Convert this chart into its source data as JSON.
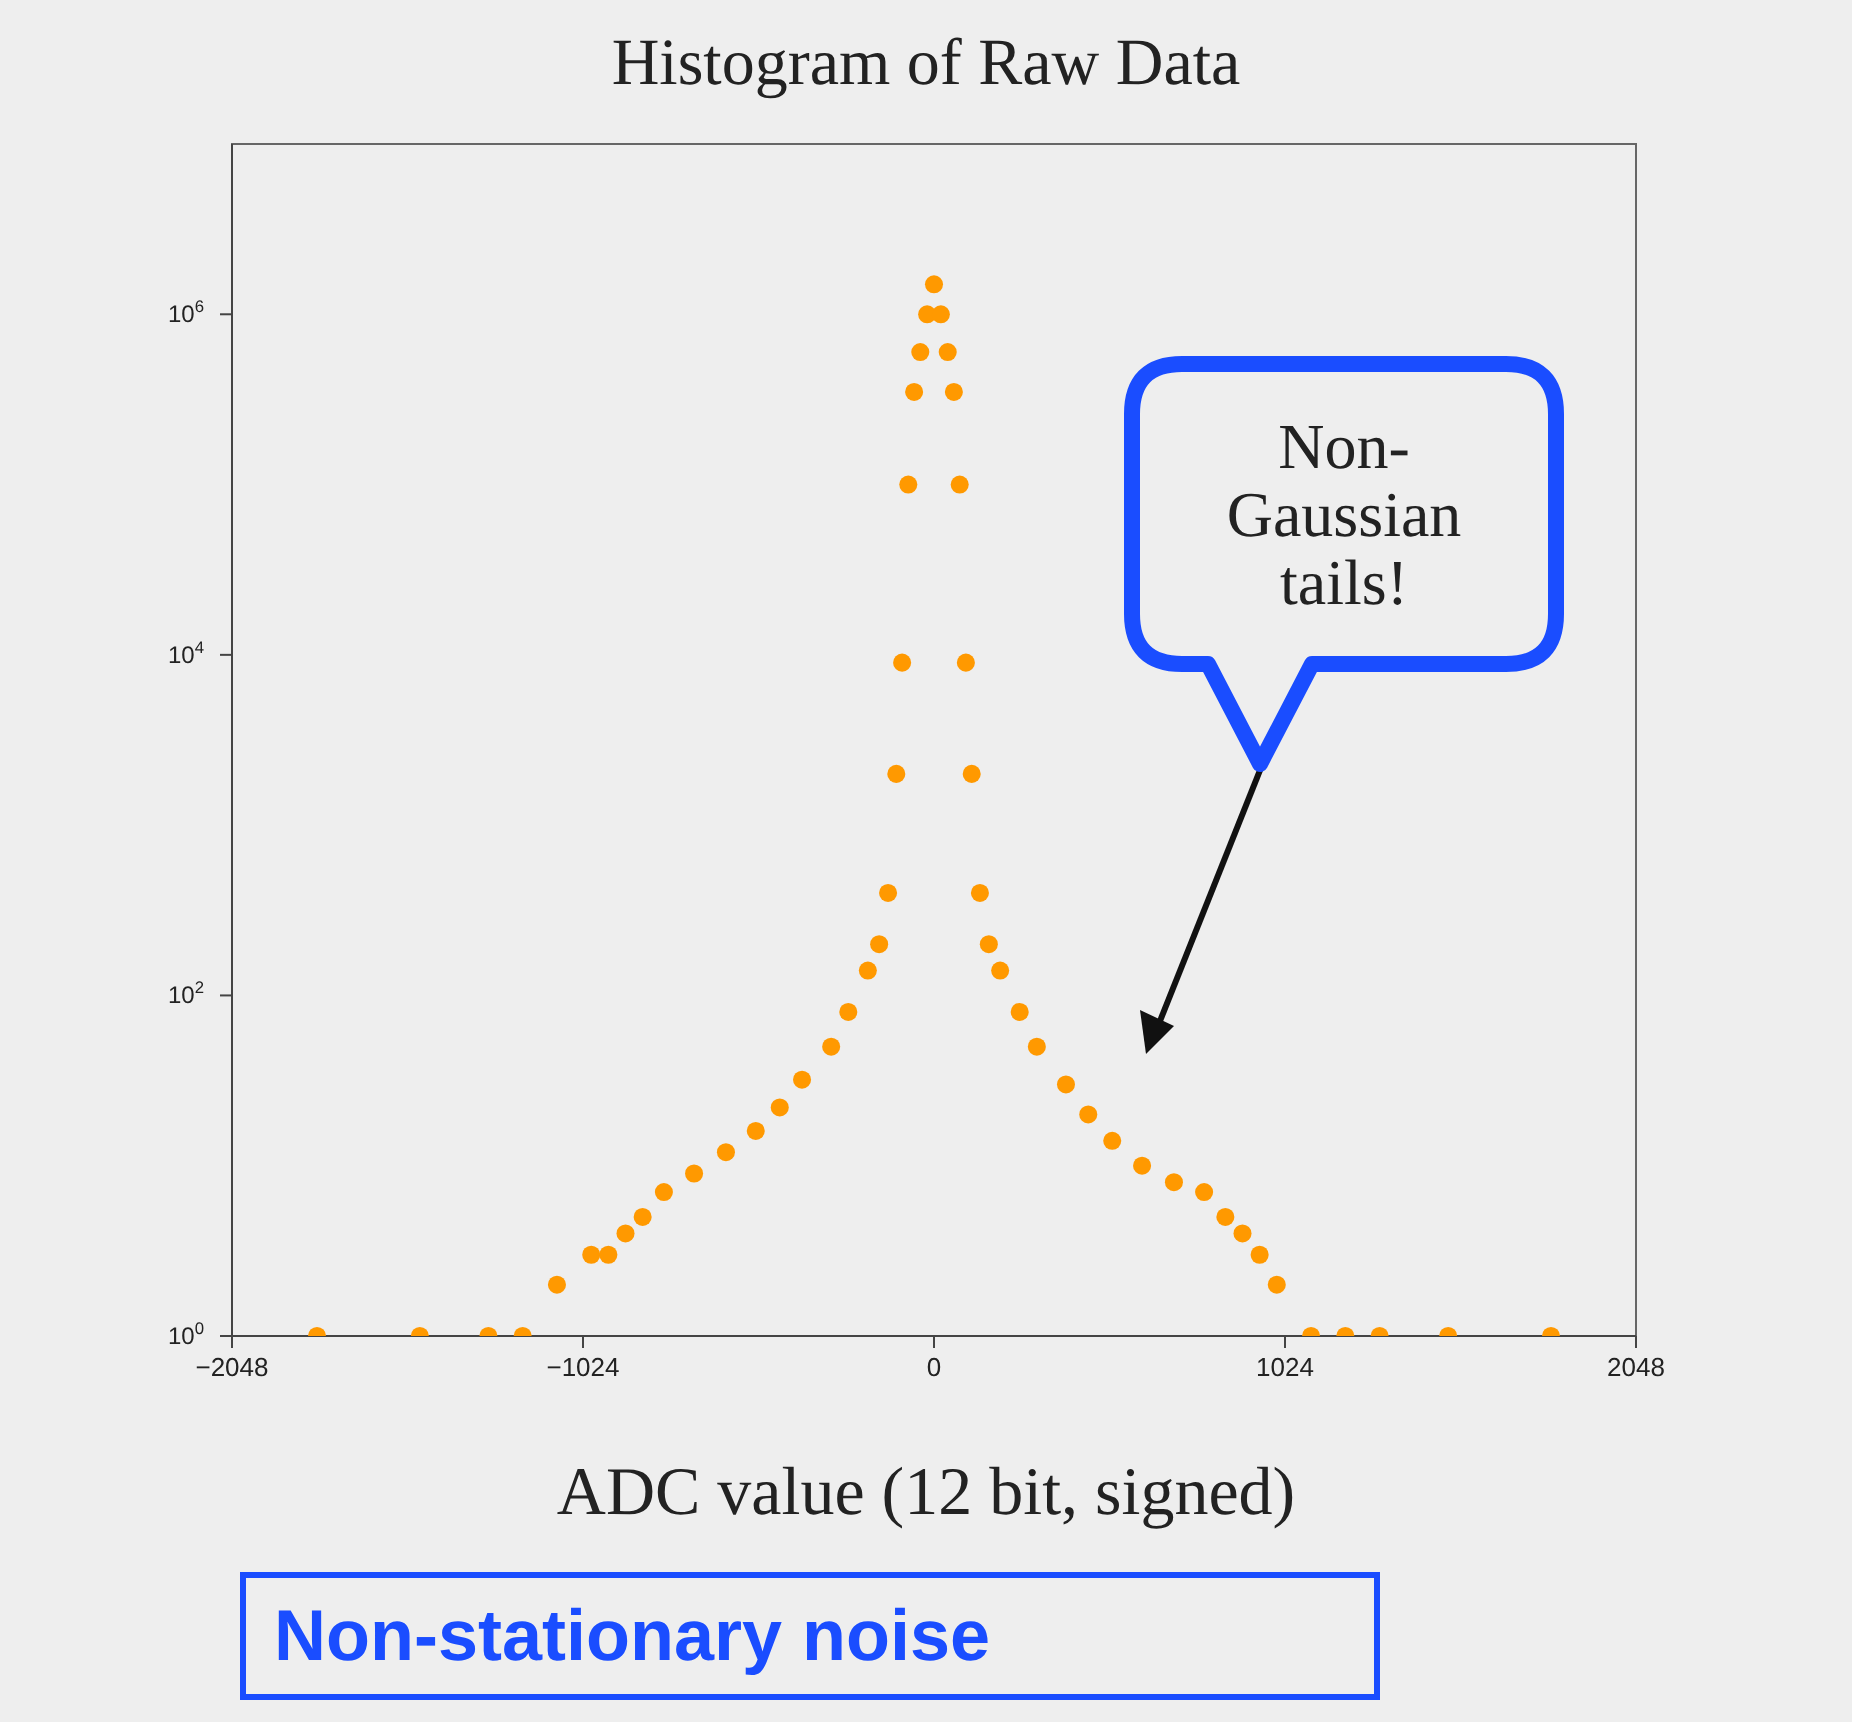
{
  "chart_data": {
    "type": "scatter",
    "title": "Histogram of Raw Data",
    "xlabel": "ADC value (12 bit, signed)",
    "x": [
      -1800,
      -1500,
      -1300,
      -1200,
      -1100,
      -1000,
      -950,
      -900,
      -850,
      -788,
      -700,
      -607,
      -520,
      -450,
      -385,
      -300,
      -250,
      -193,
      -160,
      -134,
      -110,
      -93,
      -75,
      -58,
      -40,
      -20,
      0,
      20,
      40,
      58,
      75,
      93,
      110,
      134,
      160,
      193,
      250,
      300,
      385,
      450,
      520,
      607,
      700,
      788,
      850,
      900,
      950,
      1000,
      1100,
      1200,
      1300,
      1500,
      1800
    ],
    "series": [
      {
        "color": "#ff9900",
        "values": [
          1,
          1,
          1,
          1,
          2,
          3,
          3,
          4,
          5,
          7,
          9,
          12,
          16,
          22,
          32,
          50,
          80,
          140,
          200,
          400,
          2000,
          9000,
          100000,
          350000,
          600000,
          1000000,
          1500000,
          1000000,
          600000,
          350000,
          100000,
          9000,
          2000,
          400,
          200,
          140,
          80,
          50,
          30,
          20,
          14,
          10,
          8,
          7,
          5,
          4,
          3,
          2,
          1,
          1,
          1,
          1,
          1
        ]
      }
    ],
    "xlim": [
      -2048,
      2048
    ],
    "xticks": [
      -2048,
      -1024,
      0,
      1024,
      2048
    ],
    "ylim": [
      1,
      10000000
    ],
    "log": true,
    "yticks": [
      {
        "value": 1,
        "label": "10$^{0}$"
      },
      {
        "value": 100,
        "label": "10$^{2}$"
      },
      {
        "value": 10000,
        "label": "10$^{4}$"
      },
      {
        "value": 1000000,
        "label": "10$^{6}$"
      }
    ],
    "marker": "circle",
    "grid": false,
    "annotations": [
      "Non-Gaussian tails!",
      "Non-stationary noise"
    ]
  }
}
